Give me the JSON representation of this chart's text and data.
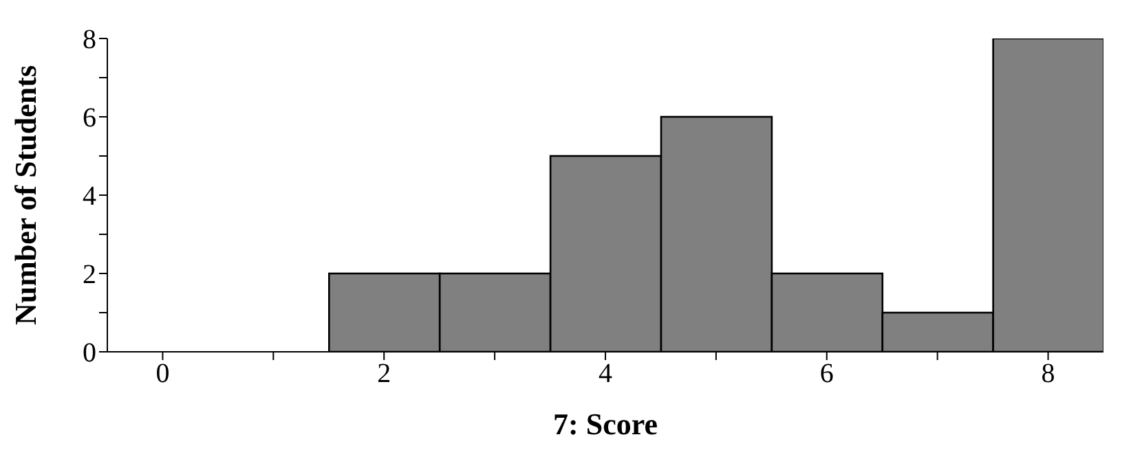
{
  "chart_data": {
    "type": "histogram",
    "xlabel": "7: Score",
    "ylabel": "Number of Students",
    "bins": [
      -0.5,
      0.5,
      1.5,
      2.5,
      3.5,
      4.5,
      5.5,
      6.5,
      7.5,
      8.5
    ],
    "values": [
      0,
      0,
      2,
      2,
      5,
      6,
      2,
      1,
      8
    ],
    "color": "#808080",
    "xlim": [
      -0.5,
      8.5
    ],
    "xticks": [
      0,
      {
        "value": 1,
        "label": null
      },
      2,
      {
        "value": 3,
        "label": null
      },
      4,
      {
        "value": 5,
        "label": null
      },
      6,
      {
        "value": 7,
        "label": null
      },
      8
    ],
    "ylim": [
      0,
      8
    ],
    "yticks": [
      0,
      {
        "value": 1,
        "label": null
      },
      2,
      {
        "value": 3,
        "label": null
      },
      4,
      {
        "value": 5,
        "label": null
      },
      6,
      {
        "value": 7,
        "label": null
      },
      8
    ],
    "grid": false,
    "legend": false
  }
}
